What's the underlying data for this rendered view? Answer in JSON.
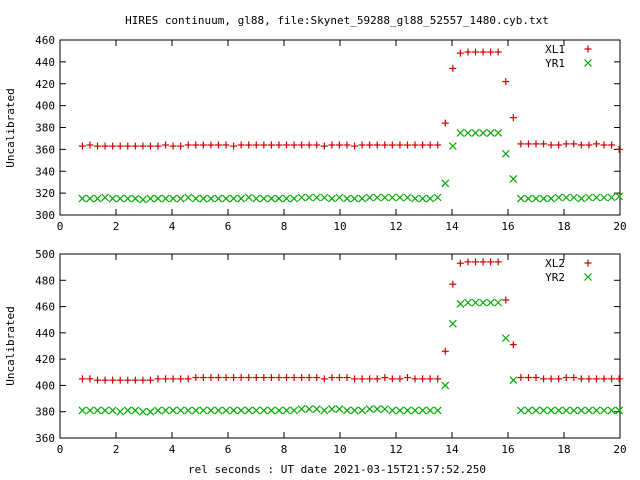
{
  "title": "HIRES continuum, gl88, file:Skynet_59288_gl88_52557_1480.cyb.txt",
  "xlabel": "rel seconds : UT date 2021-03-15T21:57:52.250",
  "chart_data": [
    {
      "type": "scatter",
      "ylabel": "Uncalibrated",
      "xlim": [
        0,
        20
      ],
      "ylim": [
        300,
        460
      ],
      "xticks": [
        0,
        2,
        4,
        6,
        8,
        10,
        12,
        14,
        16,
        18,
        20
      ],
      "yticks": [
        300,
        320,
        340,
        360,
        380,
        400,
        420,
        440,
        460
      ],
      "legend_position": "top-right",
      "series": [
        {
          "name": "XL1",
          "marker": "plus",
          "color": "#cc0000",
          "x": [
            0.8,
            1.07,
            1.34,
            1.61,
            1.88,
            2.15,
            2.42,
            2.69,
            2.96,
            3.23,
            3.5,
            3.77,
            4.04,
            4.31,
            4.58,
            4.85,
            5.12,
            5.39,
            5.66,
            5.93,
            6.2,
            6.47,
            6.74,
            7.01,
            7.28,
            7.55,
            7.82,
            8.09,
            8.36,
            8.63,
            8.9,
            9.17,
            9.44,
            9.71,
            9.98,
            10.25,
            10.52,
            10.79,
            11.06,
            11.33,
            11.6,
            11.87,
            12.14,
            12.41,
            12.68,
            12.95,
            13.22,
            13.49,
            13.76,
            14.03,
            14.3,
            14.57,
            14.84,
            15.11,
            15.38,
            15.65,
            15.92,
            16.19,
            16.46,
            16.73,
            17.0,
            17.27,
            17.54,
            17.81,
            18.08,
            18.35,
            18.62,
            18.89,
            19.16,
            19.43,
            19.7,
            19.97
          ],
          "y": [
            363,
            364,
            363,
            363,
            363,
            363,
            363,
            363,
            363,
            363,
            363,
            364,
            363,
            363,
            364,
            364,
            364,
            364,
            364,
            364,
            363,
            364,
            364,
            364,
            364,
            364,
            364,
            364,
            364,
            364,
            364,
            364,
            363,
            364,
            364,
            364,
            363,
            364,
            364,
            364,
            364,
            364,
            364,
            364,
            364,
            364,
            364,
            364,
            384,
            434,
            448,
            449,
            449,
            449,
            449,
            449,
            422,
            389,
            365,
            365,
            365,
            365,
            364,
            364,
            365,
            365,
            364,
            364,
            365,
            364,
            364,
            360
          ]
        },
        {
          "name": "YR1",
          "marker": "cross",
          "color": "#00aa00",
          "x": [
            0.8,
            1.07,
            1.34,
            1.61,
            1.88,
            2.15,
            2.42,
            2.69,
            2.96,
            3.23,
            3.5,
            3.77,
            4.04,
            4.31,
            4.58,
            4.85,
            5.12,
            5.39,
            5.66,
            5.93,
            6.2,
            6.47,
            6.74,
            7.01,
            7.28,
            7.55,
            7.82,
            8.09,
            8.36,
            8.63,
            8.9,
            9.17,
            9.44,
            9.71,
            9.98,
            10.25,
            10.52,
            10.79,
            11.06,
            11.33,
            11.6,
            11.87,
            12.14,
            12.41,
            12.68,
            12.95,
            13.22,
            13.49,
            13.76,
            14.03,
            14.3,
            14.57,
            14.84,
            15.11,
            15.38,
            15.65,
            15.92,
            16.19,
            16.46,
            16.73,
            17.0,
            17.27,
            17.54,
            17.81,
            18.08,
            18.35,
            18.62,
            18.89,
            19.16,
            19.43,
            19.7,
            19.97
          ],
          "y": [
            315,
            315,
            315,
            316,
            315,
            315,
            315,
            315,
            314,
            315,
            315,
            315,
            315,
            315,
            316,
            315,
            315,
            315,
            315,
            315,
            315,
            315,
            316,
            315,
            315,
            315,
            315,
            315,
            315,
            316,
            316,
            316,
            316,
            315,
            316,
            315,
            315,
            315,
            316,
            316,
            316,
            316,
            316,
            316,
            315,
            315,
            315,
            316,
            329,
            363,
            375,
            375,
            375,
            375,
            375,
            375,
            356,
            333,
            315,
            315,
            315,
            315,
            315,
            316,
            316,
            316,
            315,
            316,
            316,
            316,
            316,
            317
          ]
        }
      ]
    },
    {
      "type": "scatter",
      "ylabel": "Uncalibrated",
      "xlim": [
        0,
        20
      ],
      "ylim": [
        360,
        500
      ],
      "xticks": [
        0,
        2,
        4,
        6,
        8,
        10,
        12,
        14,
        16,
        18,
        20
      ],
      "yticks": [
        360,
        380,
        400,
        420,
        440,
        460,
        480,
        500
      ],
      "legend_position": "top-right",
      "series": [
        {
          "name": "XL2",
          "marker": "plus",
          "color": "#cc0000",
          "x": [
            0.8,
            1.07,
            1.34,
            1.61,
            1.88,
            2.15,
            2.42,
            2.69,
            2.96,
            3.23,
            3.5,
            3.77,
            4.04,
            4.31,
            4.58,
            4.85,
            5.12,
            5.39,
            5.66,
            5.93,
            6.2,
            6.47,
            6.74,
            7.01,
            7.28,
            7.55,
            7.82,
            8.09,
            8.36,
            8.63,
            8.9,
            9.17,
            9.44,
            9.71,
            9.98,
            10.25,
            10.52,
            10.79,
            11.06,
            11.33,
            11.6,
            11.87,
            12.14,
            12.41,
            12.68,
            12.95,
            13.22,
            13.49,
            13.76,
            14.03,
            14.3,
            14.57,
            14.84,
            15.11,
            15.38,
            15.65,
            15.92,
            16.19,
            16.46,
            16.73,
            17.0,
            17.27,
            17.54,
            17.81,
            18.08,
            18.35,
            18.62,
            18.89,
            19.16,
            19.43,
            19.7,
            19.97
          ],
          "y": [
            405,
            405,
            404,
            404,
            404,
            404,
            404,
            404,
            404,
            404,
            405,
            405,
            405,
            405,
            405,
            406,
            406,
            406,
            406,
            406,
            406,
            406,
            406,
            406,
            406,
            406,
            406,
            406,
            406,
            406,
            406,
            406,
            405,
            406,
            406,
            406,
            405,
            405,
            405,
            405,
            406,
            405,
            405,
            406,
            405,
            405,
            405,
            405,
            426,
            477,
            493,
            494,
            494,
            494,
            494,
            494,
            465,
            431,
            406,
            406,
            406,
            405,
            405,
            405,
            406,
            406,
            405,
            405,
            405,
            405,
            405,
            405
          ]
        },
        {
          "name": "YR2",
          "marker": "cross",
          "color": "#00aa00",
          "x": [
            0.8,
            1.07,
            1.34,
            1.61,
            1.88,
            2.15,
            2.42,
            2.69,
            2.96,
            3.23,
            3.5,
            3.77,
            4.04,
            4.31,
            4.58,
            4.85,
            5.12,
            5.39,
            5.66,
            5.93,
            6.2,
            6.47,
            6.74,
            7.01,
            7.28,
            7.55,
            7.82,
            8.09,
            8.36,
            8.63,
            8.9,
            9.17,
            9.44,
            9.71,
            9.98,
            10.25,
            10.52,
            10.79,
            11.06,
            11.33,
            11.6,
            11.87,
            12.14,
            12.41,
            12.68,
            12.95,
            13.22,
            13.49,
            13.76,
            14.03,
            14.3,
            14.57,
            14.84,
            15.11,
            15.38,
            15.65,
            15.92,
            16.19,
            16.46,
            16.73,
            17.0,
            17.27,
            17.54,
            17.81,
            18.08,
            18.35,
            18.62,
            18.89,
            19.16,
            19.43,
            19.7,
            19.97
          ],
          "y": [
            381,
            381,
            381,
            381,
            381,
            380,
            381,
            381,
            380,
            380,
            381,
            381,
            381,
            381,
            381,
            381,
            381,
            381,
            381,
            381,
            381,
            381,
            381,
            381,
            381,
            381,
            381,
            381,
            381,
            382,
            382,
            382,
            381,
            382,
            382,
            381,
            381,
            381,
            382,
            382,
            382,
            381,
            381,
            381,
            381,
            381,
            381,
            381,
            400,
            447,
            462,
            463,
            463,
            463,
            463,
            463,
            436,
            404,
            381,
            381,
            381,
            381,
            381,
            381,
            381,
            381,
            381,
            381,
            381,
            381,
            381,
            381
          ]
        }
      ]
    }
  ]
}
